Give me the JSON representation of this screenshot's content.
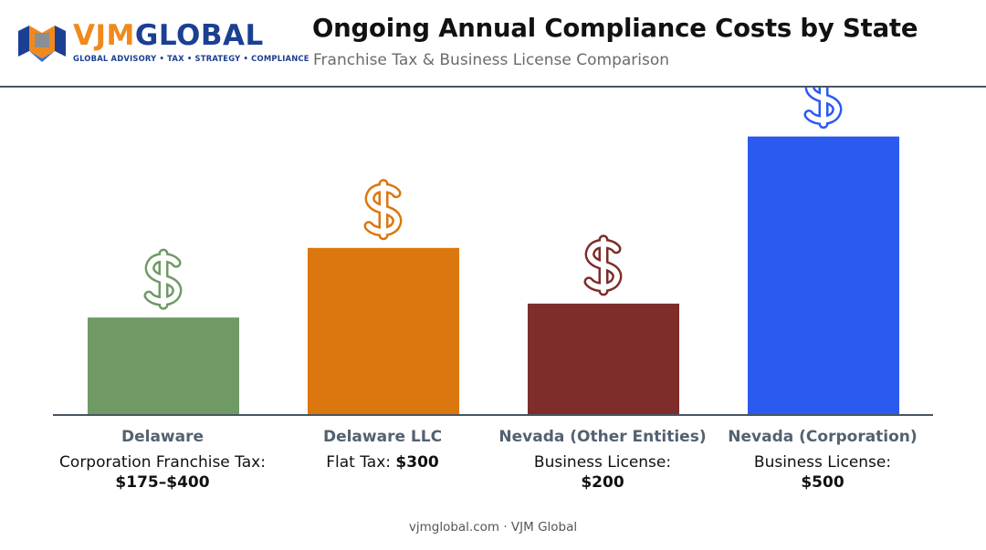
{
  "header": {
    "logo_word_1": "VJM",
    "logo_word_2": "GLOBAL",
    "logo_tagline": "GLOBAL ADVISORY • TAX • STRATEGY • COMPLIANCE",
    "title": "Ongoing Annual Compliance Costs by State",
    "subtitle": "Franchise Tax & Business License Comparison"
  },
  "chart_data": {
    "type": "bar",
    "title": "Ongoing Annual Compliance Costs by State",
    "subtitle": "Franchise Tax & Business License Comparison",
    "categories": [
      "Delaware",
      "Delaware LLC",
      "Nevada (Other Entities)",
      "Nevada (Corporation)"
    ],
    "values": [
      175,
      300,
      200,
      500
    ],
    "value_ranges": [
      [
        175,
        400
      ],
      null,
      null,
      null
    ],
    "ylim": [
      0,
      560
    ],
    "grid": false,
    "legend": "none",
    "colors": [
      "#6f9a66",
      "#dc760e",
      "#7e2d2a",
      "#2a5af0"
    ],
    "icons": [
      "dollar-icon",
      "dollar-icon",
      "dollar-icon",
      "dollar-icon"
    ],
    "annotations": [
      {
        "prefix": "Corporation Franchise Tax: ",
        "value": "$175–$400"
      },
      {
        "prefix": "Flat Tax: ",
        "value": "$300"
      },
      {
        "prefix": "Business License:",
        "value": "$200"
      },
      {
        "prefix": "Business License:",
        "value": "$500"
      }
    ]
  },
  "footer": {
    "text": "vjmglobal.com · VJM Global"
  },
  "colors": {
    "brand_orange": "#f08a1c",
    "brand_blue": "#1b3f92",
    "axis": "#4a5560"
  }
}
